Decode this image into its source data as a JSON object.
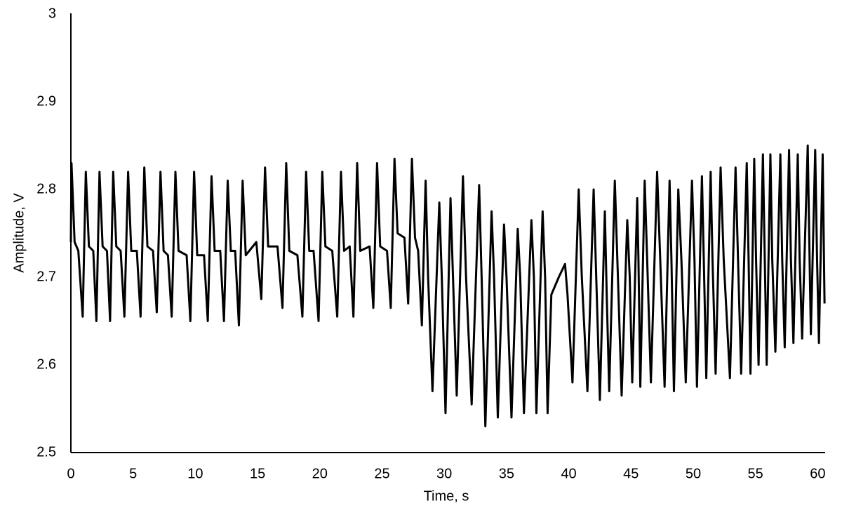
{
  "chart_data": {
    "type": "line",
    "x_label": "Time, s",
    "y_label": "Amplitude, V",
    "xlim": [
      0,
      60.6
    ],
    "ylim": [
      2.5,
      3
    ],
    "xticks": [
      0,
      5,
      10,
      15,
      20,
      25,
      30,
      35,
      40,
      45,
      50,
      55,
      60
    ],
    "yticks": [
      2.5,
      2.6,
      2.7,
      2.8,
      2.9,
      3
    ],
    "grid": false,
    "color": "#000000",
    "x": [
      0,
      0.05,
      0.3,
      0.6,
      0.95,
      1.2,
      1.45,
      1.8,
      2.05,
      2.3,
      2.55,
      2.9,
      3.15,
      3.4,
      3.65,
      4.0,
      4.3,
      4.6,
      4.85,
      5.3,
      5.6,
      5.9,
      6.15,
      6.6,
      6.9,
      7.2,
      7.45,
      7.8,
      8.1,
      8.4,
      8.65,
      9.3,
      9.6,
      9.9,
      10.15,
      10.7,
      11.0,
      11.3,
      11.55,
      12.0,
      12.3,
      12.6,
      12.85,
      13.2,
      13.5,
      13.8,
      14.05,
      14.9,
      15.3,
      15.6,
      15.85,
      16.6,
      17.0,
      17.3,
      17.55,
      18.2,
      18.6,
      18.9,
      19.15,
      19.5,
      19.9,
      20.2,
      20.45,
      21.0,
      21.4,
      21.7,
      21.95,
      22.4,
      22.7,
      23.0,
      23.25,
      24.0,
      24.3,
      24.6,
      24.85,
      25.4,
      25.7,
      26.0,
      26.25,
      26.8,
      27.1,
      27.4,
      27.65,
      27.9,
      28.2,
      28.5,
      28.7,
      29.05,
      29.6,
      29.8,
      30.1,
      30.5,
      30.7,
      31.0,
      31.5,
      31.75,
      32.2,
      32.8,
      33.0,
      33.3,
      33.8,
      34.0,
      34.3,
      34.8,
      35.0,
      35.4,
      35.9,
      36.1,
      36.4,
      37.0,
      37.2,
      37.4,
      37.9,
      38.1,
      38.3,
      38.6,
      39.2,
      39.7,
      39.9,
      40.3,
      40.8,
      41.05,
      41.5,
      42.0,
      42.25,
      42.5,
      42.9,
      43.05,
      43.25,
      43.7,
      43.95,
      44.25,
      44.7,
      44.9,
      45.1,
      45.5,
      45.6,
      45.75,
      46.1,
      46.3,
      46.6,
      47.1,
      47.35,
      47.7,
      48.1,
      48.25,
      48.45,
      48.8,
      49.05,
      49.4,
      49.9,
      50.1,
      50.3,
      50.7,
      50.85,
      51.05,
      51.4,
      51.55,
      51.8,
      52.2,
      52.45,
      52.95,
      53.4,
      53.6,
      53.85,
      54.3,
      54.45,
      54.6,
      54.9,
      55.05,
      55.25,
      55.6,
      55.75,
      55.9,
      56.2,
      56.35,
      56.6,
      57.0,
      57.15,
      57.35,
      57.7,
      57.85,
      58.05,
      58.4,
      58.55,
      58.75,
      59.2,
      59.35,
      59.45,
      59.8,
      59.95,
      60.1,
      60.4,
      60.55
    ],
    "values": [
      2.74,
      2.83,
      2.74,
      2.73,
      2.655,
      2.82,
      2.735,
      2.73,
      2.65,
      2.82,
      2.735,
      2.73,
      2.65,
      2.82,
      2.735,
      2.73,
      2.655,
      2.82,
      2.73,
      2.73,
      2.655,
      2.825,
      2.735,
      2.73,
      2.66,
      2.82,
      2.73,
      2.725,
      2.655,
      2.82,
      2.73,
      2.725,
      2.65,
      2.82,
      2.725,
      2.725,
      2.65,
      2.815,
      2.73,
      2.73,
      2.65,
      2.81,
      2.73,
      2.73,
      2.645,
      2.81,
      2.725,
      2.74,
      2.675,
      2.825,
      2.735,
      2.735,
      2.665,
      2.83,
      2.73,
      2.725,
      2.655,
      2.82,
      2.73,
      2.73,
      2.65,
      2.82,
      2.735,
      2.73,
      2.655,
      2.82,
      2.73,
      2.735,
      2.655,
      2.83,
      2.73,
      2.735,
      2.665,
      2.83,
      2.735,
      2.73,
      2.665,
      2.835,
      2.75,
      2.745,
      2.67,
      2.835,
      2.745,
      2.73,
      2.645,
      2.81,
      2.7,
      2.57,
      2.785,
      2.7,
      2.545,
      2.79,
      2.7,
      2.565,
      2.815,
      2.7,
      2.555,
      2.805,
      2.7,
      2.53,
      2.775,
      2.7,
      2.54,
      2.76,
      2.7,
      2.54,
      2.755,
      2.7,
      2.545,
      2.765,
      2.7,
      2.545,
      2.775,
      2.7,
      2.545,
      2.68,
      2.7,
      2.715,
      2.68,
      2.58,
      2.8,
      2.7,
      2.57,
      2.8,
      2.68,
      2.56,
      2.775,
      2.68,
      2.57,
      2.81,
      2.7,
      2.565,
      2.765,
      2.7,
      2.58,
      2.79,
      2.72,
      2.575,
      2.81,
      2.72,
      2.58,
      2.82,
      2.72,
      2.575,
      2.81,
      2.72,
      2.57,
      2.8,
      2.72,
      2.58,
      2.81,
      2.72,
      2.575,
      2.815,
      2.72,
      2.585,
      2.82,
      2.72,
      2.59,
      2.825,
      2.72,
      2.585,
      2.825,
      2.72,
      2.59,
      2.83,
      2.72,
      2.59,
      2.835,
      2.72,
      2.6,
      2.84,
      2.72,
      2.6,
      2.84,
      2.72,
      2.615,
      2.84,
      2.72,
      2.62,
      2.845,
      2.72,
      2.625,
      2.84,
      2.72,
      2.63,
      2.85,
      2.72,
      2.635,
      2.845,
      2.72,
      2.625,
      2.84,
      2.67
    ]
  }
}
